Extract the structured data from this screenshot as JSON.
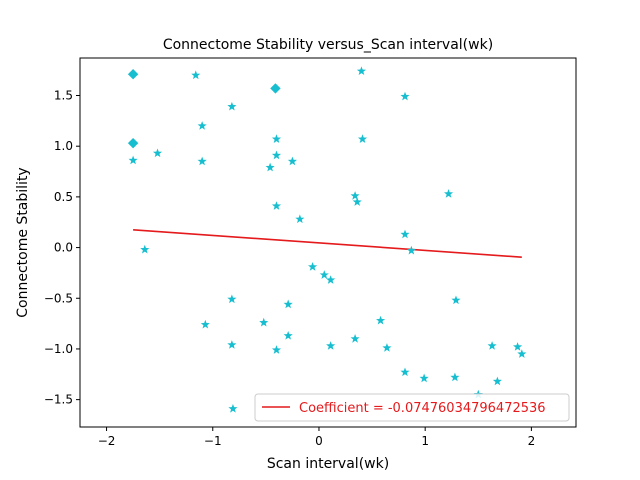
{
  "chart_data": {
    "type": "scatter",
    "title": "Connectome Stability versus_Scan interval(wk)",
    "xlabel": "Scan interval(wk)",
    "ylabel": "Connectome Stability",
    "xlim": [
      -2.25,
      2.42
    ],
    "ylim": [
      -1.77,
      1.87
    ],
    "xticks": [
      -2,
      -1,
      0,
      1,
      2
    ],
    "yticks": [
      -1.5,
      -1.0,
      -0.5,
      0.0,
      0.5,
      1.0,
      1.5
    ],
    "xtick_labels": [
      "−2",
      "−1",
      "0",
      "1",
      "2"
    ],
    "ytick_labels": [
      "−1.5",
      "−1.0",
      "−0.5",
      "0.0",
      "0.5",
      "1.0",
      "1.5"
    ],
    "grid": false,
    "legend_position": "lower right",
    "marker_color": "#17becf",
    "line_color": "#e41a1c",
    "series": [
      {
        "marker": "star",
        "points": [
          [
            -1.75,
            0.86
          ],
          [
            -1.52,
            0.93
          ],
          [
            -1.64,
            -0.02
          ],
          [
            -1.16,
            1.7
          ],
          [
            -1.1,
            1.2
          ],
          [
            -1.1,
            0.85
          ],
          [
            -1.07,
            -0.76
          ],
          [
            -0.82,
            1.39
          ],
          [
            -0.82,
            -0.51
          ],
          [
            -0.82,
            -0.96
          ],
          [
            -0.81,
            -1.59
          ],
          [
            -0.52,
            -0.74
          ],
          [
            -0.46,
            0.79
          ],
          [
            -0.4,
            1.07
          ],
          [
            -0.4,
            0.91
          ],
          [
            -0.4,
            0.41
          ],
          [
            -0.4,
            -1.01
          ],
          [
            -0.29,
            -0.56
          ],
          [
            -0.29,
            -0.87
          ],
          [
            -0.25,
            0.85
          ],
          [
            -0.18,
            0.28
          ],
          [
            -0.06,
            -0.19
          ],
          [
            0.05,
            -0.27
          ],
          [
            0.11,
            -0.32
          ],
          [
            0.11,
            -0.97
          ],
          [
            0.34,
            0.51
          ],
          [
            0.36,
            0.45
          ],
          [
            0.34,
            -0.9
          ],
          [
            0.4,
            1.74
          ],
          [
            0.41,
            1.07
          ],
          [
            0.58,
            -0.72
          ],
          [
            0.64,
            -0.99
          ],
          [
            0.81,
            1.49
          ],
          [
            0.81,
            0.13
          ],
          [
            0.81,
            -1.23
          ],
          [
            0.87,
            -0.03
          ],
          [
            0.99,
            -1.29
          ],
          [
            1.22,
            0.53
          ],
          [
            1.29,
            -0.52
          ],
          [
            1.28,
            -1.28
          ],
          [
            1.5,
            -1.45
          ],
          [
            1.63,
            -0.97
          ],
          [
            1.68,
            -1.32
          ],
          [
            1.87,
            -0.98
          ],
          [
            1.91,
            -1.05
          ]
        ]
      },
      {
        "marker": "diamond",
        "points": [
          [
            -1.75,
            1.71
          ],
          [
            -1.75,
            1.03
          ],
          [
            -0.41,
            1.57
          ]
        ]
      },
      {
        "name": "Coefficient = -0.07476034796472536",
        "type": "line",
        "x": [
          -1.75,
          1.91
        ],
        "y": [
          0.175,
          -0.095
        ]
      }
    ]
  }
}
